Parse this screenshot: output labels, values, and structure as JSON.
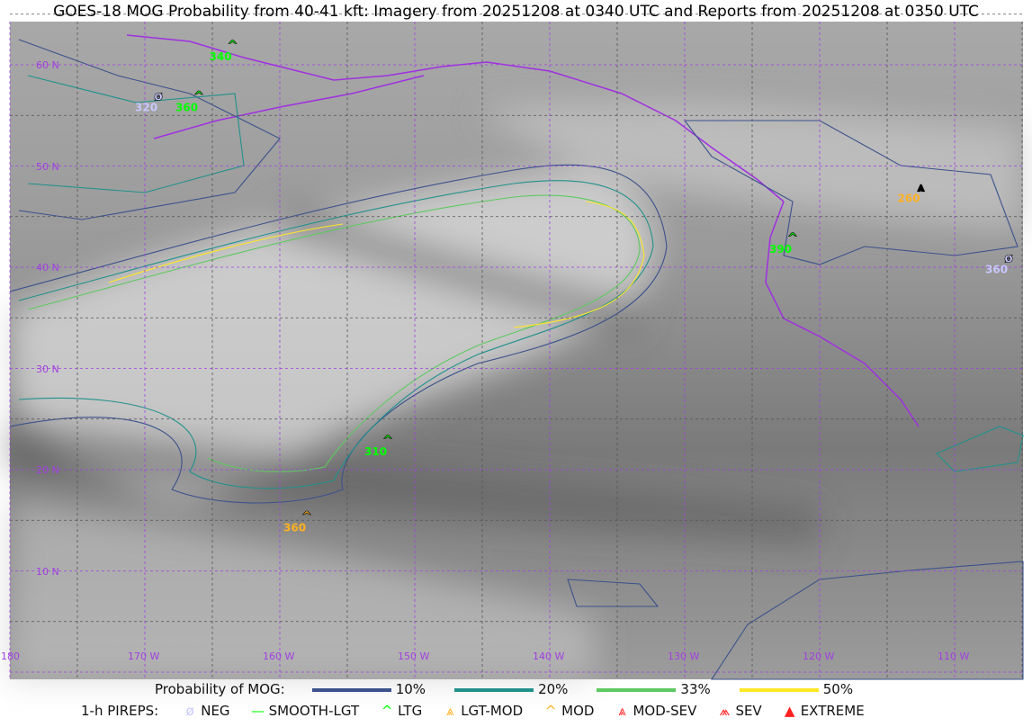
{
  "title": "GOES-18 MOG Probability from 40-41 kft: Imagery from 20251208 at 0340 UTC and Reports from 20251208 at 0350 UTC",
  "map": {
    "lon_labels": [
      "180",
      "170 W",
      "160 W",
      "150 W",
      "140 W",
      "130 W",
      "120 W",
      "110 W"
    ],
    "lat_labels": [
      "60 N",
      "50 N",
      "40 N",
      "30 N",
      "20 N",
      "10 N"
    ],
    "grid_color": "#a040e0",
    "pireps": [
      {
        "label": "340",
        "type": "LTG",
        "color": "#00ff00",
        "lon": -163.5,
        "lat": 61.5
      },
      {
        "label": "360",
        "type": "LTG",
        "color": "#00ff00",
        "lon": -166,
        "lat": 56.5
      },
      {
        "label": "320",
        "type": "NEG",
        "color": "#c8c8ff",
        "lon": -169,
        "lat": 56.5
      },
      {
        "label": "260",
        "type": "LGT-MOD",
        "color": "#ffb020",
        "lon": -112.5,
        "lat": 47.5
      },
      {
        "label": "360",
        "type": "NEG",
        "color": "#c8c8ff",
        "lon": -106,
        "lat": 40.5
      },
      {
        "label": "390",
        "type": "LTG",
        "color": "#00ff00",
        "lon": -122,
        "lat": 42.5
      },
      {
        "label": "310",
        "type": "LTG",
        "color": "#00ff00",
        "lon": -152,
        "lat": 22.5
      },
      {
        "label": "360",
        "type": "MOD",
        "color": "#ffb020",
        "lon": -158,
        "lat": 15
      }
    ]
  },
  "legend": {
    "prob_title": "Probability of MOG:",
    "prob_levels": [
      {
        "label": "10%",
        "color": "#3b528b"
      },
      {
        "label": "20%",
        "color": "#21918c"
      },
      {
        "label": "33%",
        "color": "#5ec962"
      },
      {
        "label": "50%",
        "color": "#fde725"
      }
    ],
    "pirep_title": "1-h PIREPS:",
    "pirep_types": [
      {
        "label": "NEG",
        "icon": "null-circle-icon",
        "color": "#c8c8ff",
        "glyph": "ø"
      },
      {
        "label": "SMOOTH-LGT",
        "icon": "dash-icon",
        "color": "#00ff00",
        "glyph": "—"
      },
      {
        "label": "LTG",
        "icon": "caret-icon",
        "color": "#00ff00",
        "glyph": "^"
      },
      {
        "label": "LGT-MOD",
        "icon": "lgt-mod-icon",
        "color": "#ffb020",
        "glyph": "⩓"
      },
      {
        "label": "MOD",
        "icon": "mod-icon",
        "color": "#ffb020",
        "glyph": "^"
      },
      {
        "label": "MOD-SEV",
        "icon": "mod-sev-icon",
        "color": "#ff2020",
        "glyph": "⩓"
      },
      {
        "label": "SEV",
        "icon": "sev-icon",
        "color": "#ff2020",
        "glyph": "⩕"
      },
      {
        "label": "EXTREME",
        "icon": "extreme-icon",
        "color": "#ff2020",
        "glyph": "▲"
      }
    ]
  }
}
